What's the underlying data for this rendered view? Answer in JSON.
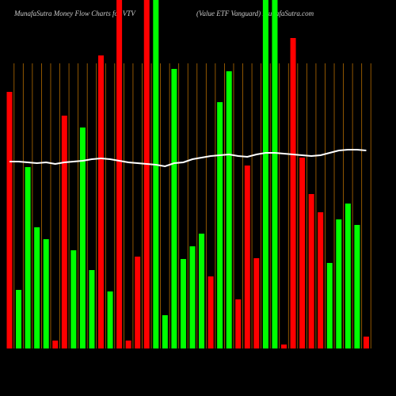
{
  "chart_data": {
    "type": "bar",
    "title": "MunafaSutra  Money Flow  Charts for VTV",
    "subtitle": "(Value   ETF Vanguard)  MunafaSutra.com",
    "ylim": [
      0,
      440
    ],
    "series": [
      {
        "type": "bar",
        "values": [
          324,
          74,
          229,
          153,
          138,
          10,
          294,
          124,
          279,
          99,
          370,
          72,
          440,
          10,
          116,
          440,
          440,
          42,
          353,
          113,
          129,
          145,
          91,
          311,
          350,
          62,
          231,
          114,
          440,
          440,
          5,
          392,
          241,
          195,
          172,
          108,
          163,
          183,
          156,
          15
        ],
        "colors": [
          "#ff0000",
          "#00ff00",
          "#00ff00",
          "#00ff00",
          "#00ff00",
          "#ff0000",
          "#ff0000",
          "#00ff00",
          "#00ff00",
          "#00ff00",
          "#ff0000",
          "#00ff00",
          "#ff0000",
          "#ff0000",
          "#ff0000",
          "#ff0000",
          "#00ff00",
          "#00ff00",
          "#00ff00",
          "#00ff00",
          "#00ff00",
          "#00ff00",
          "#ff0000",
          "#00ff00",
          "#00ff00",
          "#ff0000",
          "#ff0000",
          "#ff0000",
          "#00ff00",
          "#00ff00",
          "#ff0000",
          "#ff0000",
          "#ff0000",
          "#ff0000",
          "#ff0000",
          "#00ff00",
          "#00ff00",
          "#00ff00",
          "#00ff00",
          "#ff0000"
        ]
      },
      {
        "type": "line",
        "color": "#ffffff",
        "values": [
          236,
          236,
          235,
          234,
          235,
          233,
          235,
          236,
          237,
          239,
          240,
          239,
          237,
          235,
          234,
          233,
          232,
          230,
          234,
          235,
          239,
          241,
          243,
          244,
          245,
          243,
          242,
          245,
          247,
          247,
          246,
          245,
          244,
          243,
          244,
          247,
          250,
          251,
          251,
          250
        ]
      }
    ]
  }
}
